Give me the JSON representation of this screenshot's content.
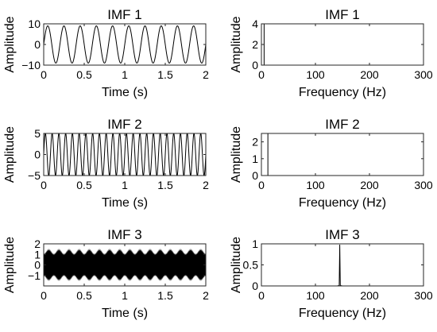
{
  "chart_data": [
    {
      "type": "line",
      "title": "IMF 1",
      "xlabel": "Time (s)",
      "ylabel": "Amplitude",
      "xlim": [
        0,
        2
      ],
      "ylim": [
        -10,
        10
      ],
      "xticks": [
        0,
        0.5,
        1,
        1.5,
        2
      ],
      "xtick_labels": [
        "0",
        "0.5",
        "1",
        "1.5",
        "2"
      ],
      "yticks": [
        -10,
        0,
        10
      ],
      "ytick_labels": [
        "−10",
        "0",
        "10"
      ],
      "series": [
        {
          "signal": "sine",
          "amplitude": 9,
          "frequency_hz": 5,
          "duration_s": 2,
          "color": "#000000"
        }
      ]
    },
    {
      "type": "line",
      "title": "IMF 1",
      "xlabel": "Frequency (Hz)",
      "ylabel": "Amplitude",
      "xlim": [
        0,
        300
      ],
      "ylim": [
        0,
        4
      ],
      "xticks": [
        0,
        100,
        200,
        300
      ],
      "xtick_labels": [
        "0",
        "100",
        "200",
        "300"
      ],
      "yticks": [
        0,
        2,
        4
      ],
      "ytick_labels": [
        "0",
        "2",
        "4"
      ],
      "series": [
        {
          "x": [
            0,
            4,
            5,
            5,
            5,
            6,
            250
          ],
          "y": [
            0,
            0,
            0,
            4,
            0,
            0,
            0
          ],
          "color": "#000000"
        }
      ]
    },
    {
      "type": "line",
      "title": "IMF 2",
      "xlabel": "Time (s)",
      "ylabel": "Amplitude",
      "xlim": [
        0,
        2
      ],
      "ylim": [
        -5,
        5
      ],
      "xticks": [
        0,
        0.5,
        1,
        1.5,
        2
      ],
      "xtick_labels": [
        "0",
        "0.5",
        "1",
        "1.5",
        "2"
      ],
      "yticks": [
        -5,
        0,
        5
      ],
      "ytick_labels": [
        "−5",
        "0",
        "5"
      ],
      "series": [
        {
          "signal": "sine",
          "amplitude": 5,
          "frequency_hz": 12,
          "duration_s": 2,
          "color": "#000000"
        }
      ]
    },
    {
      "type": "line",
      "title": "IMF 2",
      "xlabel": "Frequency (Hz)",
      "ylabel": "Amplitude",
      "xlim": [
        0,
        300
      ],
      "ylim": [
        0,
        2.5
      ],
      "xticks": [
        0,
        100,
        200,
        300
      ],
      "xtick_labels": [
        "0",
        "100",
        "200",
        "300"
      ],
      "yticks": [
        0,
        1,
        2
      ],
      "ytick_labels": [
        "0",
        "1",
        "2"
      ],
      "series": [
        {
          "x": [
            0,
            11,
            12,
            12,
            12,
            13,
            250
          ],
          "y": [
            0,
            0,
            0,
            2.5,
            0,
            0,
            0
          ],
          "color": "#000000"
        }
      ]
    },
    {
      "type": "line",
      "title": "IMF 3",
      "xlabel": "Time (s)",
      "ylabel": "Amplitude",
      "xlim": [
        0,
        2
      ],
      "ylim": [
        -2,
        2
      ],
      "xticks": [
        0,
        0.5,
        1,
        1.5,
        2
      ],
      "xtick_labels": [
        "0",
        "0.5",
        "1",
        "1.5",
        "2"
      ],
      "yticks": [
        -1,
        0,
        1,
        2
      ],
      "ytick_labels": [
        "−1",
        "0",
        "1",
        "2"
      ],
      "series": [
        {
          "signal": "sine",
          "amplitude": 1.4,
          "frequency_hz": 145,
          "duration_s": 2,
          "modulation_hz": 8,
          "modulation_depth": 0.3,
          "envelope_color": "#999999",
          "color": "#000000"
        }
      ]
    },
    {
      "type": "line",
      "title": "IMF 3",
      "xlabel": "Frequency (Hz)",
      "ylabel": "Amplitude",
      "xlim": [
        0,
        300
      ],
      "ylim": [
        0,
        1
      ],
      "xticks": [
        0,
        100,
        200,
        300
      ],
      "xtick_labels": [
        "0",
        "100",
        "200",
        "300"
      ],
      "yticks": [
        0,
        0.5,
        1
      ],
      "ytick_labels": [
        "0",
        "0.5",
        "1"
      ],
      "series": [
        {
          "x": [
            0,
            140,
            144,
            145,
            146,
            150,
            250
          ],
          "y": [
            0,
            0,
            0.01,
            0.98,
            0.01,
            0,
            0
          ],
          "color": "#000000"
        }
      ]
    }
  ]
}
